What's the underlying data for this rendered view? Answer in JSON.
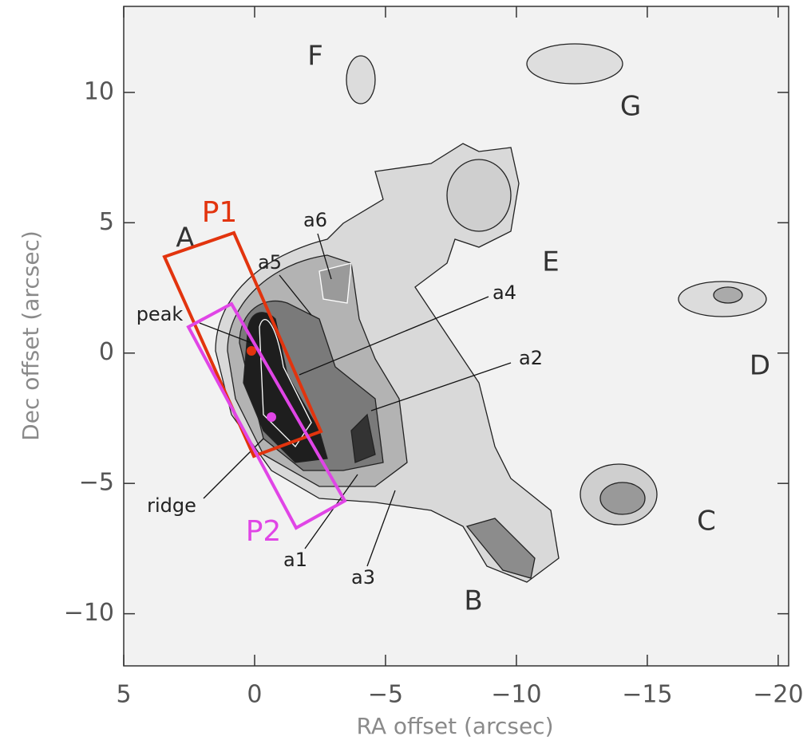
{
  "chart_data": {
    "type": "image",
    "xlabel": "RA offset (arcsec)",
    "ylabel": "Dec offset (arcsec)",
    "xlim": [
      5,
      -20.4
    ],
    "ylim": [
      -12,
      13.3
    ],
    "xticks": [
      5,
      0,
      {
        "value": -5,
        "label": "−5"
      },
      {
        "value": -10,
        "label": "−10"
      },
      {
        "value": -15,
        "label": "−15"
      },
      {
        "value": -20,
        "label": "−20"
      }
    ],
    "yticks": [
      {
        "value": -10,
        "label": "−10"
      },
      {
        "value": -5,
        "label": "−5"
      },
      0,
      5,
      10
    ],
    "annotations": [
      "F",
      "G",
      "E",
      "D",
      "C",
      "B",
      "A",
      "a6",
      "a5",
      "peak",
      "a4",
      "a2",
      "ridge",
      "a1",
      "a3"
    ],
    "boxes": [
      {
        "name": "P1",
        "color": "#e2340e"
      },
      {
        "name": "P2",
        "color": "#e045e6"
      }
    ]
  }
}
